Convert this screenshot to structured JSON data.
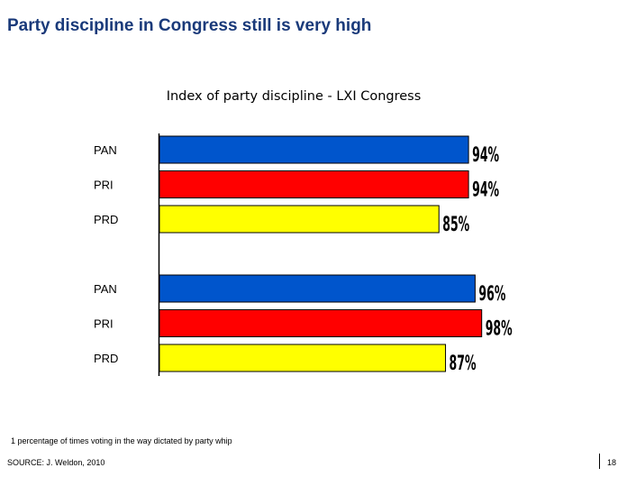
{
  "page": {
    "title": "Party discipline in Congress still is very high",
    "footnote": "1 percentage of times voting in the way dictated by party whip",
    "source": "SOURCE: J. Weldon, 2010",
    "page_number": "18"
  },
  "chart_data": {
    "type": "bar",
    "orientation": "horizontal",
    "title": "Index of party discipline - LXI Congress",
    "xlabel": "",
    "ylabel": "",
    "xlim": [
      0,
      100
    ],
    "grid": false,
    "legend": "none",
    "groups": [
      {
        "bars": [
          {
            "category": "PAN",
            "value": 94,
            "label": "94%",
            "color": "#0055cc"
          },
          {
            "category": "PRI",
            "value": 94,
            "label": "94%",
            "color": "#ff0000"
          },
          {
            "category": "PRD",
            "value": 85,
            "label": "85%",
            "color": "#ffff00"
          }
        ]
      },
      {
        "bars": [
          {
            "category": "PAN",
            "value": 96,
            "label": "96%",
            "color": "#0055cc"
          },
          {
            "category": "PRI",
            "value": 98,
            "label": "98%",
            "color": "#ff0000"
          },
          {
            "category": "PRD",
            "value": 87,
            "label": "87%",
            "color": "#ffff00"
          }
        ]
      }
    ]
  }
}
